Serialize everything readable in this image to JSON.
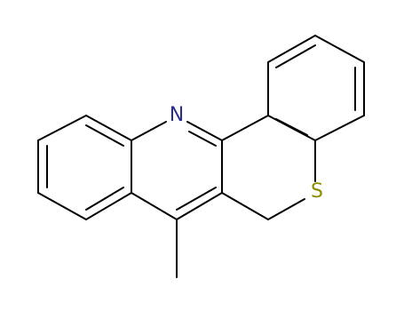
{
  "atoms": {
    "nitrogen": "N",
    "sulfur": "S"
  }
}
